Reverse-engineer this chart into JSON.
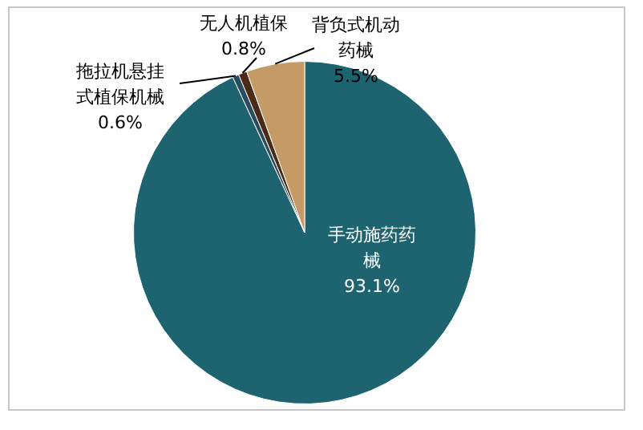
{
  "chart_data": {
    "type": "pie",
    "categories": [
      "手动施药药械",
      "拖拉机悬挂式植保机械",
      "无人机植保",
      "背负式机动药械"
    ],
    "values": [
      93.1,
      0.6,
      0.8,
      5.5
    ],
    "value_labels": [
      "93.1%",
      "0.6%",
      "0.8%",
      "5.5%"
    ],
    "colors": [
      "#1e6470",
      "#2b4b5e",
      "#4b2a17",
      "#c49a66"
    ],
    "legend": false
  }
}
